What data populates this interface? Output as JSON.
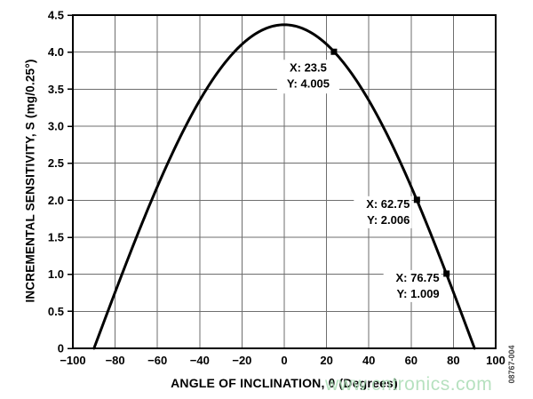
{
  "figure": {
    "figure_number": "08767-004",
    "watermark": "www.cntronics.com"
  },
  "colors": {
    "curve": "#000000",
    "grid": "#6e6e6e",
    "axis_border": "#000000",
    "text": "#000000",
    "annotation_bg": "#ffffff",
    "watermark": "#aadcb5",
    "figure_number": "#474747",
    "background": "#ffffff"
  },
  "chart_data": {
    "type": "line",
    "title": "",
    "xlabel": "ANGLE OF INCLINATION, θ (Degrees)",
    "ylabel": "INCREMENTAL SENSITIVITY, S (mg/0.25°)",
    "xlim": [
      -100,
      100
    ],
    "ylim": [
      0,
      4.5
    ],
    "grid": true,
    "x_ticks": [
      -100,
      -80,
      -60,
      -40,
      -20,
      0,
      20,
      40,
      60,
      80,
      100
    ],
    "x_tick_labels": [
      "−100",
      "−80",
      "−60",
      "−40",
      "−20",
      "0",
      "20",
      "40",
      "60",
      "80",
      "100"
    ],
    "y_ticks": [
      0,
      0.5,
      1.0,
      1.5,
      2.0,
      2.5,
      3.0,
      3.5,
      4.0,
      4.5
    ],
    "y_tick_labels": [
      "0",
      "0.5",
      "1.0",
      "1.5",
      "2.0",
      "2.5",
      "3.0",
      "3.5",
      "4.0",
      "4.5"
    ],
    "series": [
      {
        "name": "incremental-sensitivity-curve",
        "model": "S = S0 * cos(theta)",
        "amplitude": 4.37,
        "x_range_deg": [
          -90,
          90
        ],
        "sample_step_deg": 1,
        "color": "#000000",
        "line_width": 3
      }
    ],
    "marked_points": [
      {
        "x": 23.5,
        "y": 4.005,
        "label_lines": [
          "X: 23.5",
          "Y: 4.005"
        ],
        "label_anchor": "below"
      },
      {
        "x": 62.75,
        "y": 2.006,
        "label_lines": [
          "X: 62.75",
          "Y: 2.006"
        ],
        "label_anchor": "left"
      },
      {
        "x": 76.75,
        "y": 1.009,
        "label_lines": [
          "X: 76.75",
          "Y: 1.009"
        ],
        "label_anchor": "left"
      }
    ]
  }
}
